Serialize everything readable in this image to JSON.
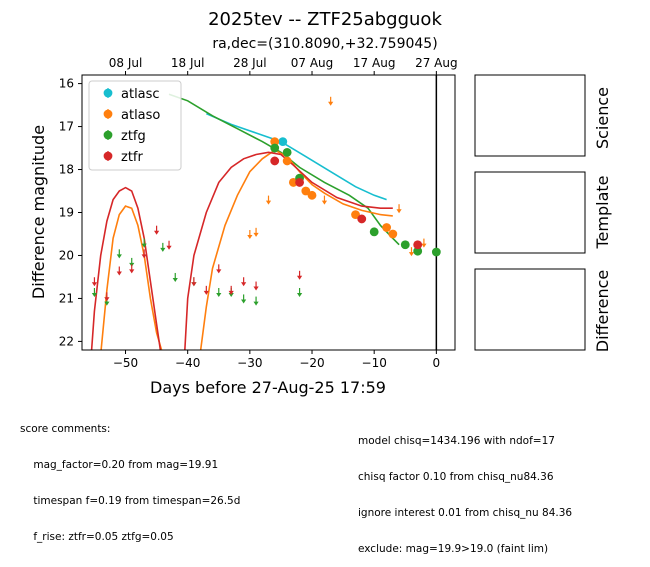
{
  "chart_data": {
    "type": "scatter",
    "title": "2025tev -- ZTF25abgguok",
    "subtitle": "ra,dec=(310.8090,+32.759045)",
    "xlabel": "Days before 27-Aug-25 17:59",
    "ylabel": "Difference magnitude",
    "xlim": [
      -57,
      3
    ],
    "ylim": [
      22.2,
      15.8
    ],
    "y_inverted": true,
    "x_ticks": [
      -50,
      -40,
      -30,
      -20,
      -10,
      0
    ],
    "y_ticks": [
      16,
      17,
      18,
      19,
      20,
      21,
      22
    ],
    "top_axis_ticks": [
      {
        "x": -50,
        "label": "08 Jul"
      },
      {
        "x": -40,
        "label": "18 Jul"
      },
      {
        "x": -30,
        "label": "28 Jul"
      },
      {
        "x": -20,
        "label": "07 Aug"
      },
      {
        "x": -10,
        "label": "17 Aug"
      },
      {
        "x": 0,
        "label": "27 Aug"
      }
    ],
    "legend_position": "top-left",
    "series": [
      {
        "name": "atlasc",
        "color": "#17becf",
        "detections": [
          {
            "x": -24.7,
            "y": 17.35
          }
        ],
        "upper_limits": []
      },
      {
        "name": "atlaso",
        "color": "#ff7f0e",
        "detections": [
          {
            "x": -26.0,
            "y": 17.35
          },
          {
            "x": -24.0,
            "y": 17.8
          },
          {
            "x": -23.0,
            "y": 18.3
          },
          {
            "x": -21.0,
            "y": 18.5
          },
          {
            "x": -20.0,
            "y": 18.6
          },
          {
            "x": -13.0,
            "y": 19.05
          },
          {
            "x": -8.0,
            "y": 19.35
          },
          {
            "x": -7.0,
            "y": 19.5
          }
        ],
        "upper_limits": [
          {
            "x": -27.0,
            "y": 18.7
          },
          {
            "x": -30.0,
            "y": 19.5
          },
          {
            "x": -29.0,
            "y": 19.45
          },
          {
            "x": -18.0,
            "y": 18.7
          },
          {
            "x": -17.0,
            "y": 16.4
          },
          {
            "x": -6.0,
            "y": 18.9
          },
          {
            "x": -4.0,
            "y": 19.9
          },
          {
            "x": -2.0,
            "y": 19.7
          }
        ]
      },
      {
        "name": "ztfg",
        "color": "#2ca02c",
        "detections": [
          {
            "x": -26.0,
            "y": 17.5
          },
          {
            "x": -24.0,
            "y": 17.6
          },
          {
            "x": -22.0,
            "y": 18.2
          },
          {
            "x": -10.0,
            "y": 19.45
          },
          {
            "x": -5.0,
            "y": 19.75
          },
          {
            "x": -3.0,
            "y": 19.9
          },
          {
            "x": 0.0,
            "y": 19.92
          }
        ],
        "upper_limits": [
          {
            "x": -55.0,
            "y": 20.85
          },
          {
            "x": -53.0,
            "y": 21.05
          },
          {
            "x": -51.0,
            "y": 19.95
          },
          {
            "x": -49.0,
            "y": 20.15
          },
          {
            "x": -47.0,
            "y": 19.7
          },
          {
            "x": -44.0,
            "y": 19.8
          },
          {
            "x": -42.0,
            "y": 20.5
          },
          {
            "x": -39.0,
            "y": 20.6
          },
          {
            "x": -35.0,
            "y": 20.85
          },
          {
            "x": -33.0,
            "y": 20.85
          },
          {
            "x": -31.0,
            "y": 21.0
          },
          {
            "x": -29.0,
            "y": 21.05
          },
          {
            "x": -22.0,
            "y": 20.85
          }
        ]
      },
      {
        "name": "ztfr",
        "color": "#d62728",
        "detections": [
          {
            "x": -26.0,
            "y": 17.8
          },
          {
            "x": -22.0,
            "y": 18.3
          },
          {
            "x": -12.0,
            "y": 19.15
          },
          {
            "x": -3.0,
            "y": 19.75
          }
        ],
        "upper_limits": [
          {
            "x": -55.0,
            "y": 20.6
          },
          {
            "x": -53.0,
            "y": 20.95
          },
          {
            "x": -51.0,
            "y": 20.35
          },
          {
            "x": -49.0,
            "y": 20.3
          },
          {
            "x": -47.0,
            "y": 19.95
          },
          {
            "x": -45.0,
            "y": 19.4
          },
          {
            "x": -43.0,
            "y": 19.75
          },
          {
            "x": -39.0,
            "y": 20.6
          },
          {
            "x": -37.0,
            "y": 20.8
          },
          {
            "x": -35.0,
            "y": 20.3
          },
          {
            "x": -33.0,
            "y": 20.8
          },
          {
            "x": -31.0,
            "y": 20.6
          },
          {
            "x": -29.0,
            "y": 20.7
          },
          {
            "x": -22.0,
            "y": 20.45
          }
        ]
      }
    ],
    "model_curves": [
      {
        "band": "atlasc",
        "color": "#17becf",
        "points": [
          [
            -37,
            16.7
          ],
          [
            -33,
            16.95
          ],
          [
            -29,
            17.15
          ],
          [
            -25,
            17.35
          ],
          [
            -21,
            17.7
          ],
          [
            -17,
            18.05
          ],
          [
            -13,
            18.4
          ],
          [
            -10,
            18.6
          ],
          [
            -8,
            18.7
          ]
        ]
      },
      {
        "band": "ztfg",
        "color": "#2ca02c",
        "points": [
          [
            -43,
            16.25
          ],
          [
            -40,
            16.4
          ],
          [
            -36,
            16.75
          ],
          [
            -32,
            17.05
          ],
          [
            -28,
            17.35
          ],
          [
            -25,
            17.6
          ],
          [
            -22,
            17.95
          ],
          [
            -18,
            18.3
          ],
          [
            -14,
            18.6
          ],
          [
            -11,
            18.9
          ],
          [
            -9,
            19.3
          ],
          [
            -7,
            19.6
          ],
          [
            -6,
            19.75
          ]
        ]
      },
      {
        "band": "atlaso",
        "color": "#ff7f0e",
        "points": [
          [
            -54,
            22.3
          ],
          [
            -53,
            20.8
          ],
          [
            -52,
            19.6
          ],
          [
            -51,
            19.05
          ],
          [
            -50,
            18.85
          ],
          [
            -49,
            18.9
          ],
          [
            -48,
            19.3
          ],
          [
            -47,
            20.0
          ],
          [
            -46,
            21.0
          ],
          [
            -45,
            21.8
          ],
          [
            -44,
            22.3
          ],
          null,
          [
            -38,
            22.3
          ],
          [
            -37,
            21.2
          ],
          [
            -36,
            20.3
          ],
          [
            -34,
            19.3
          ],
          [
            -32,
            18.6
          ],
          [
            -30,
            18.05
          ],
          [
            -28,
            17.75
          ],
          [
            -26,
            17.55
          ],
          [
            -24,
            17.7
          ],
          [
            -22,
            18.05
          ],
          [
            -20,
            18.35
          ],
          [
            -18,
            18.55
          ],
          [
            -15,
            18.8
          ],
          [
            -12,
            18.95
          ],
          [
            -9,
            19.05
          ],
          [
            -7,
            19.08
          ]
        ]
      },
      {
        "band": "ztfr",
        "color": "#d62728",
        "points": [
          [
            -55.5,
            22.3
          ],
          [
            -55,
            21.3
          ],
          [
            -54,
            20.0
          ],
          [
            -53,
            19.2
          ],
          [
            -52,
            18.7
          ],
          [
            -51,
            18.5
          ],
          [
            -50,
            18.42
          ],
          [
            -49,
            18.5
          ],
          [
            -48,
            18.9
          ],
          [
            -47,
            19.6
          ],
          [
            -46,
            20.6
          ],
          [
            -45,
            21.6
          ],
          [
            -44.3,
            22.3
          ],
          null,
          [
            -40.5,
            22.3
          ],
          [
            -40,
            21.0
          ],
          [
            -39,
            20.0
          ],
          [
            -37,
            19.0
          ],
          [
            -35,
            18.3
          ],
          [
            -33,
            17.95
          ],
          [
            -31,
            17.75
          ],
          [
            -29,
            17.65
          ],
          [
            -27,
            17.6
          ],
          [
            -25,
            17.65
          ],
          [
            -23,
            17.9
          ],
          [
            -20,
            18.3
          ],
          [
            -16,
            18.65
          ],
          [
            -12,
            18.85
          ],
          [
            -9,
            18.9
          ],
          [
            -7,
            18.9
          ]
        ]
      }
    ],
    "vertical_line_x": 0,
    "side_panels": [
      "Science",
      "Template",
      "Difference"
    ],
    "comments_left": [
      "score comments:",
      "    mag_factor=0.20 from mag=19.91",
      "    timespan f=0.19 from timespan=26.5d",
      "    f_rise: ztfr=0.05 ztfg=0.05"
    ],
    "comments_right": [
      "model chisq=1434.196 with ndof=17",
      "chisq factor 0.10 from chisq_nu84.36",
      "ignore interest 0.01 from chisq_nu 84.36",
      "exclude: mag=19.9>19.0 (faint lim)"
    ]
  }
}
